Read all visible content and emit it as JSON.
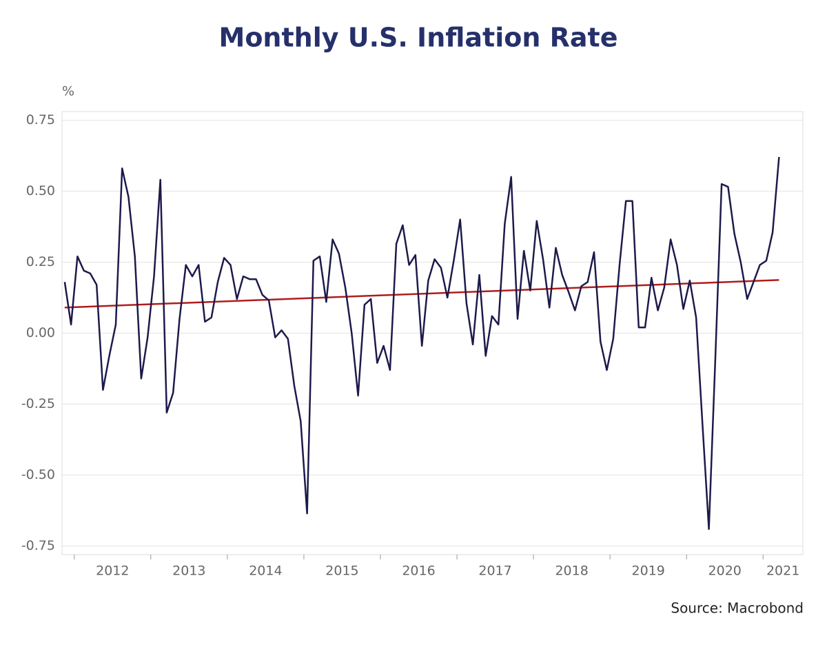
{
  "chart_data": {
    "type": "line",
    "title": "Monthly U.S. Inflation Rate",
    "y_label": "%",
    "source": "Source: Macrobond",
    "x": [
      2011.875,
      2011.958,
      2012.042,
      2012.125,
      2012.208,
      2012.292,
      2012.375,
      2012.458,
      2012.542,
      2012.625,
      2012.708,
      2012.792,
      2012.875,
      2012.958,
      2013.042,
      2013.125,
      2013.208,
      2013.292,
      2013.375,
      2013.458,
      2013.542,
      2013.625,
      2013.708,
      2013.792,
      2013.875,
      2013.958,
      2014.042,
      2014.125,
      2014.208,
      2014.292,
      2014.375,
      2014.458,
      2014.542,
      2014.625,
      2014.708,
      2014.792,
      2014.875,
      2014.958,
      2015.042,
      2015.125,
      2015.208,
      2015.292,
      2015.375,
      2015.458,
      2015.542,
      2015.625,
      2015.708,
      2015.792,
      2015.875,
      2015.958,
      2016.042,
      2016.125,
      2016.208,
      2016.292,
      2016.375,
      2016.458,
      2016.542,
      2016.625,
      2016.708,
      2016.792,
      2016.875,
      2016.958,
      2017.042,
      2017.125,
      2017.208,
      2017.292,
      2017.375,
      2017.458,
      2017.542,
      2017.625,
      2017.708,
      2017.792,
      2017.875,
      2017.958,
      2018.042,
      2018.125,
      2018.208,
      2018.292,
      2018.375,
      2018.458,
      2018.542,
      2018.625,
      2018.708,
      2018.792,
      2018.875,
      2018.958,
      2019.042,
      2019.125,
      2019.208,
      2019.292,
      2019.375,
      2019.458,
      2019.542,
      2019.625,
      2019.708,
      2019.792,
      2019.875,
      2019.958,
      2020.042,
      2020.125,
      2020.208,
      2020.292,
      2020.375,
      2020.458,
      2020.542,
      2020.625,
      2020.708,
      2020.792,
      2020.875,
      2020.958,
      2021.042,
      2021.125,
      2021.208
    ],
    "series": [
      {
        "color": "#1c1a4a",
        "values": [
          0.18,
          0.03,
          0.27,
          0.22,
          0.21,
          0.17,
          -0.2,
          -0.08,
          0.03,
          0.58,
          0.48,
          0.27,
          -0.16,
          -0.015,
          0.2,
          0.54,
          -0.28,
          -0.21,
          0.05,
          0.24,
          0.2,
          0.24,
          0.04,
          0.055,
          0.18,
          0.265,
          0.24,
          0.12,
          0.2,
          0.19,
          0.19,
          0.135,
          0.115,
          -0.015,
          0.01,
          -0.02,
          -0.185,
          -0.31,
          -0.635,
          0.255,
          0.27,
          0.11,
          0.33,
          0.28,
          0.16,
          0,
          -0.22,
          0.1,
          0.12,
          -0.105,
          -0.045,
          -0.13,
          0.315,
          0.38,
          0.24,
          0.275,
          -0.045,
          0.185,
          0.26,
          0.23,
          0.125,
          0.255,
          0.4,
          0.105,
          -0.04,
          0.205,
          -0.08,
          0.06,
          0.03,
          0.385,
          0.55,
          0.05,
          0.29,
          0.15,
          0.395,
          0.26,
          0.09,
          0.3,
          0.205,
          0.145,
          0.08,
          0.165,
          0.18,
          0.285,
          -0.03,
          -0.13,
          -0.02,
          0.24,
          0.465,
          0.465,
          0.02,
          0.02,
          0.195,
          0.08,
          0.16,
          0.33,
          0.24,
          0.085,
          0.185,
          0.055,
          -0.32,
          -0.69,
          -0.1,
          0.525,
          0.515,
          0.35,
          0.25,
          0.12,
          0.18,
          0.24,
          0.255,
          0.355,
          0.62
        ]
      },
      {
        "color": "#b01c1c",
        "x": [
          2011.875,
          2021.208
        ],
        "values": [
          0.09,
          0.187
        ]
      }
    ],
    "xlim": [
      2011.84,
      2021.52
    ],
    "xticks": [
      2012,
      2013,
      2014,
      2015,
      2016,
      2017,
      2018,
      2019,
      2020,
      2021
    ],
    "ylim": [
      -0.78,
      0.78
    ],
    "yticks": [
      0.75,
      {
        "value": 0.5,
        "label": "0.50"
      },
      0.25,
      {
        "value": 0,
        "label": "0.00"
      },
      -0.25,
      {
        "value": -0.5,
        "label": "-0.50"
      },
      -0.75
    ],
    "grid": true
  }
}
